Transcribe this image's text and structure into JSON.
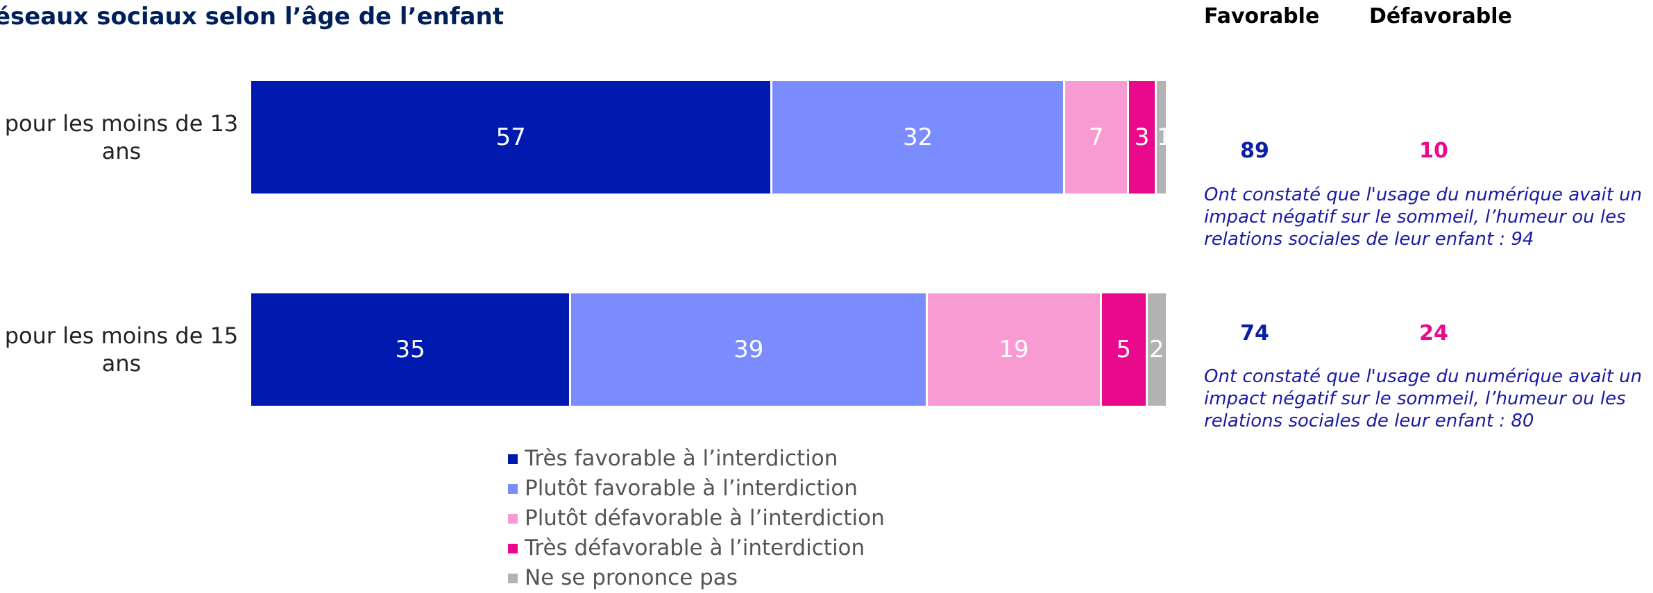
{
  "header": {
    "title": "éseaux sociaux selon l’âge de l’enfant",
    "favorable_label": "Favorable",
    "defavorable_label": "Défavorable"
  },
  "colors": {
    "tres_favorable": "#001aaf",
    "plutot_favorable": "#7b8cff",
    "plutot_defavorable": "#f99bd3",
    "tres_defavorable": "#e8098c",
    "nsp": "#b3b3b3",
    "favorable_text": "#0a1ea8",
    "defavorable_text": "#e8098c"
  },
  "chart_data": {
    "type": "bar",
    "orientation": "horizontal-stacked-100",
    "categories": [
      "pour les moins de 13 ans",
      "pour les moins de 15 ans"
    ],
    "series": [
      {
        "name": "Très favorable à l’interdiction",
        "values": [
          57,
          35
        ]
      },
      {
        "name": "Plutôt favorable à l’interdiction",
        "values": [
          32,
          39
        ]
      },
      {
        "name": "Plutôt défavorable à l’interdiction",
        "values": [
          7,
          19
        ]
      },
      {
        "name": "Très défavorable à l’interdiction",
        "values": [
          3,
          5
        ]
      },
      {
        "name": "Ne se prononce pas",
        "values": [
          1,
          2
        ]
      }
    ],
    "legend_position": "bottom",
    "grid": false
  },
  "summary": [
    {
      "favorable": "89",
      "defavorable": "10",
      "note": "Ont constaté que l'usage du numérique avait un impact négatif sur le sommeil,  l’humeur ou les relations sociales de leur enfant : 94"
    },
    {
      "favorable": "74",
      "defavorable": "24",
      "note": "Ont constaté que l'usage du numérique avait un impact négatif sur le sommeil,  l’humeur ou les relations sociales de leur enfant : 80"
    }
  ]
}
